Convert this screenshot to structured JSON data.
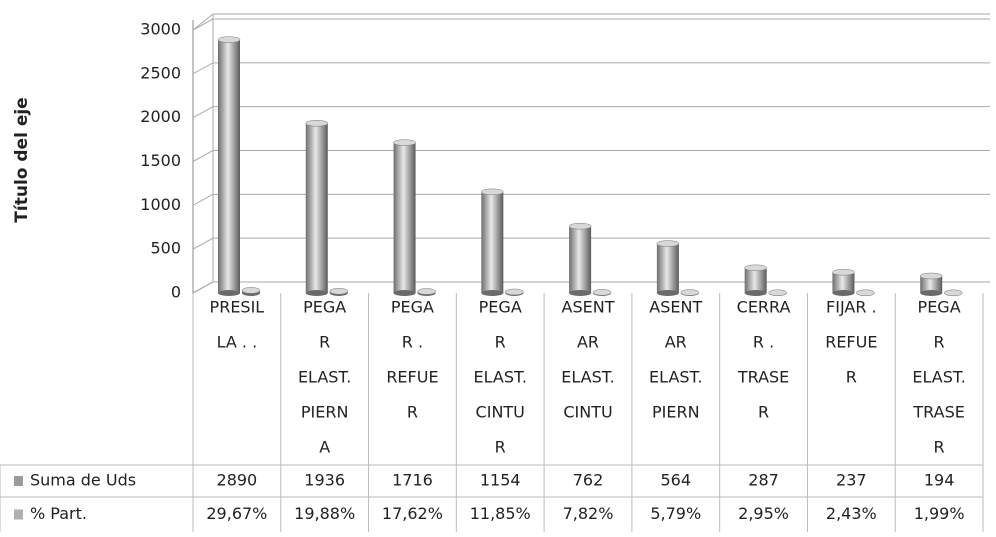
{
  "chart_data": {
    "type": "bar",
    "y_axis_label": "Título del eje",
    "categories": [
      [
        "PRESIL",
        "LA . ."
      ],
      [
        "PEGA",
        "R",
        "ELAST.",
        "PIERN",
        "A"
      ],
      [
        "PEGA",
        "R .",
        "REFUE",
        "R"
      ],
      [
        "PEGA",
        "R",
        "ELAST.",
        "CINTU",
        "R"
      ],
      [
        "ASENT",
        "AR",
        "ELAST.",
        "CINTU"
      ],
      [
        "ASENT",
        "AR",
        "ELAST.",
        "PIERN"
      ],
      [
        "CERRA",
        "R .",
        "TRASE",
        "R"
      ],
      [
        "FIJAR .",
        "REFUE",
        "R"
      ],
      [
        "PEGA",
        "R",
        "ELAST.",
        "TRASE",
        "R"
      ]
    ],
    "series": [
      {
        "name": "Suma de Uds",
        "color": "#9a9a9a",
        "values": [
          2890,
          1936,
          1716,
          1154,
          762,
          564,
          287,
          237,
          194
        ]
      },
      {
        "name": "% Part.",
        "color": "#b0b0b0",
        "values": [
          29.67,
          19.88,
          17.62,
          11.85,
          7.82,
          5.79,
          2.95,
          2.43,
          1.99
        ],
        "value_labels": [
          "29,67%",
          "19,88%",
          "17,62%",
          "11,85%",
          "7,82%",
          "5,79%",
          "2,95%",
          "2,43%",
          "1,99%"
        ]
      }
    ],
    "ylim": [
      0,
      3000
    ],
    "yticks": [
      0,
      500,
      1000,
      1500,
      2000,
      2500,
      3000
    ],
    "grid": true
  }
}
